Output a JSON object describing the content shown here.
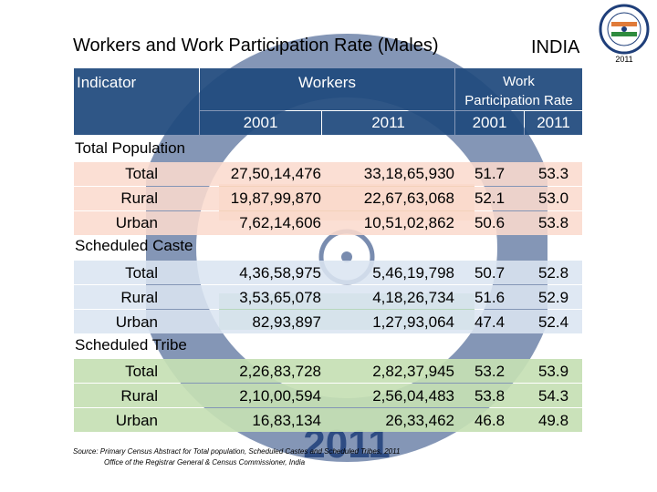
{
  "title": "Workers and Work Participation Rate (Males)",
  "country": "INDIA",
  "logo": {
    "icon": "census-of-india-2011-logo",
    "text": "2011"
  },
  "watermark": {
    "icon": "census-of-india-2011-emblem-watermark"
  },
  "header": {
    "indicator": "Indicator",
    "workers": "Workers",
    "wpr_line1": "Work",
    "wpr_line2": "Participation Rate",
    "years": [
      "2001",
      "2011",
      "2001",
      "2011"
    ]
  },
  "sections": [
    {
      "name": "Total Population",
      "rows": [
        {
          "label": "Total",
          "w2001": "27,50,14,476",
          "w2011": "33,18,65,930",
          "r2001": "51.7",
          "r2011": "53.3"
        },
        {
          "label": "Rural",
          "w2001": "19,87,99,870",
          "w2011": "22,67,63,068",
          "r2001": "52.1",
          "r2011": "53.0"
        },
        {
          "label": "Urban",
          "w2001": "7,62,14,606",
          "w2011": "10,51,02,862",
          "r2001": "50.6",
          "r2011": "53.8"
        }
      ]
    },
    {
      "name": "Scheduled Caste",
      "rows": [
        {
          "label": "Total",
          "w2001": "4,36,58,975",
          "w2011": "5,46,19,798",
          "r2001": "50.7",
          "r2011": "52.8"
        },
        {
          "label": "Rural",
          "w2001": "3,53,65,078",
          "w2011": "4,18,26,734",
          "r2001": "51.6",
          "r2011": "52.9"
        },
        {
          "label": "Urban",
          "w2001": "82,93,897",
          "w2011": "1,27,93,064",
          "r2001": "47.4",
          "r2011": "52.4"
        }
      ]
    },
    {
      "name": "Scheduled Tribe",
      "rows": [
        {
          "label": "Total",
          "w2001": "2,26,83,728",
          "w2011": "2,82,37,945",
          "r2001": "53.2",
          "r2011": "53.9"
        },
        {
          "label": "Rural",
          "w2001": "2,10,00,594",
          "w2011": "2,56,04,483",
          "r2001": "53.8",
          "r2011": "54.3"
        },
        {
          "label": "Urban",
          "w2001": "16,83,134",
          "w2011": "26,33,462",
          "r2001": "46.8",
          "r2011": "49.8"
        }
      ]
    }
  ],
  "source_line1": "Source: Primary Census Abstract for Total population, Scheduled Castes and Scheduled Tribes, 2011",
  "source_line2": "Office of the Registrar General & Census Commissioner, India"
}
